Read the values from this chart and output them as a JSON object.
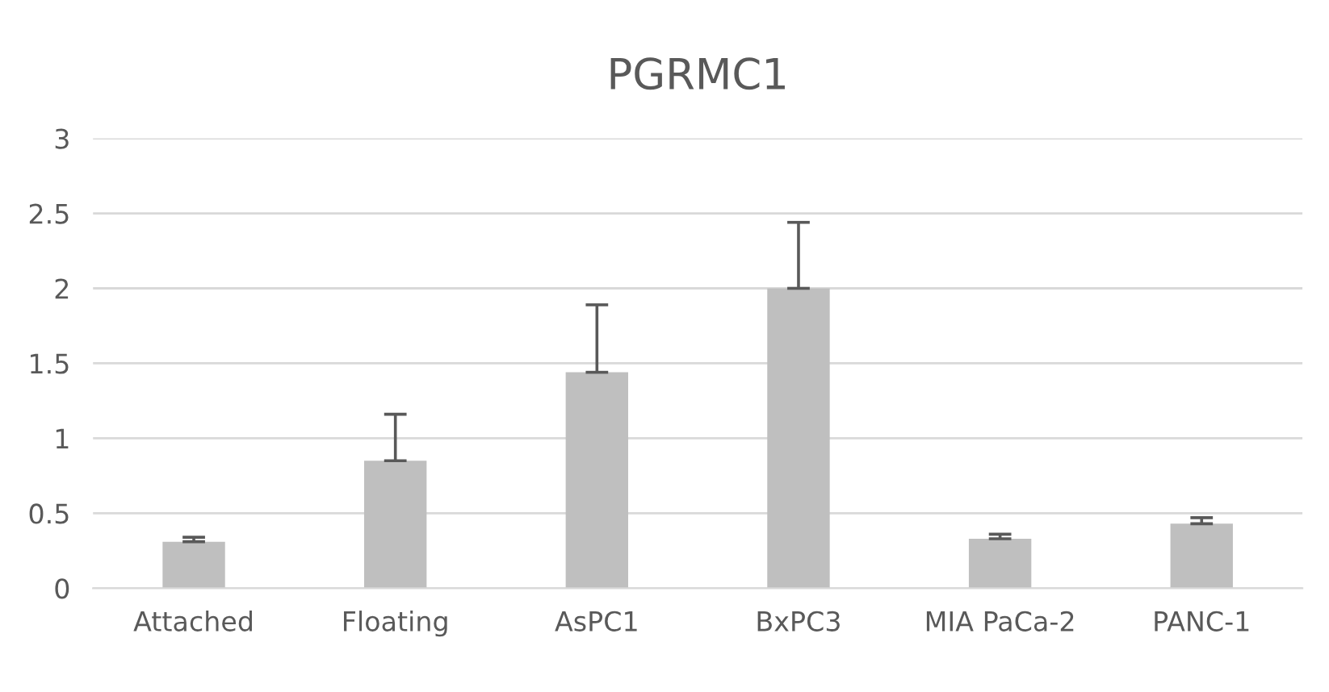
{
  "chart_data": {
    "type": "bar",
    "title": "PGRMC1",
    "categories": [
      "Attached",
      "Floating",
      "AsPC1",
      "BxPC3",
      "MIA PaCa-2",
      "PANC-1"
    ],
    "values": [
      0.31,
      0.85,
      1.44,
      2.0,
      0.33,
      0.43
    ],
    "errors": [
      [
        0.31,
        0.34
      ],
      [
        0.85,
        1.16
      ],
      [
        1.44,
        1.89
      ],
      [
        2.0,
        2.44
      ],
      [
        0.33,
        0.36
      ],
      [
        0.43,
        0.47
      ]
    ],
    "color": "#bfbfbf",
    "ylim": [
      0,
      3
    ],
    "yticks": [
      0,
      0.5,
      1,
      1.5,
      2,
      2.5,
      3
    ],
    "grid": "y"
  }
}
